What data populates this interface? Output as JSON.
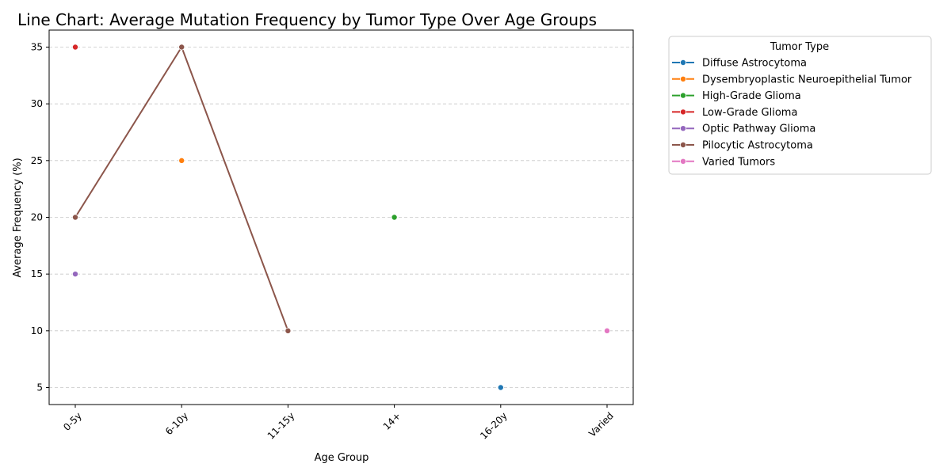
{
  "chart_data": {
    "type": "line",
    "title": "Line Chart: Average Mutation Frequency by Tumor Type Over Age Groups",
    "xlabel": "Age Group",
    "ylabel": "Average Frequency (%)",
    "categories": [
      "0-5y",
      "6-10y",
      "11-15y",
      "14+",
      "16-20y",
      "Varied"
    ],
    "yticks": [
      5,
      10,
      15,
      20,
      25,
      30,
      35
    ],
    "ylim": [
      3.5,
      36.5
    ],
    "grid": "y-dashed",
    "legend_title": "Tumor Type",
    "legend_position": "outside-top-right",
    "series": [
      {
        "name": "Diffuse Astrocytoma",
        "color": "#1f77b4",
        "points": [
          [
            "16-20y",
            5
          ]
        ]
      },
      {
        "name": "Dysembryoplastic Neuroepithelial Tumor",
        "color": "#ff7f0e",
        "points": [
          [
            "6-10y",
            25
          ]
        ]
      },
      {
        "name": "High-Grade Glioma",
        "color": "#2ca02c",
        "points": [
          [
            "14+",
            20
          ]
        ]
      },
      {
        "name": "Low-Grade Glioma",
        "color": "#d62728",
        "points": [
          [
            "0-5y",
            35
          ]
        ]
      },
      {
        "name": "Optic Pathway Glioma",
        "color": "#9467bd",
        "points": [
          [
            "0-5y",
            15
          ]
        ]
      },
      {
        "name": "Pilocytic Astrocytoma",
        "color": "#8c564b",
        "points": [
          [
            "0-5y",
            20
          ],
          [
            "6-10y",
            35
          ],
          [
            "11-15y",
            10
          ]
        ]
      },
      {
        "name": "Varied Tumors",
        "color": "#e377c2",
        "points": [
          [
            "Varied",
            10
          ]
        ]
      }
    ]
  }
}
